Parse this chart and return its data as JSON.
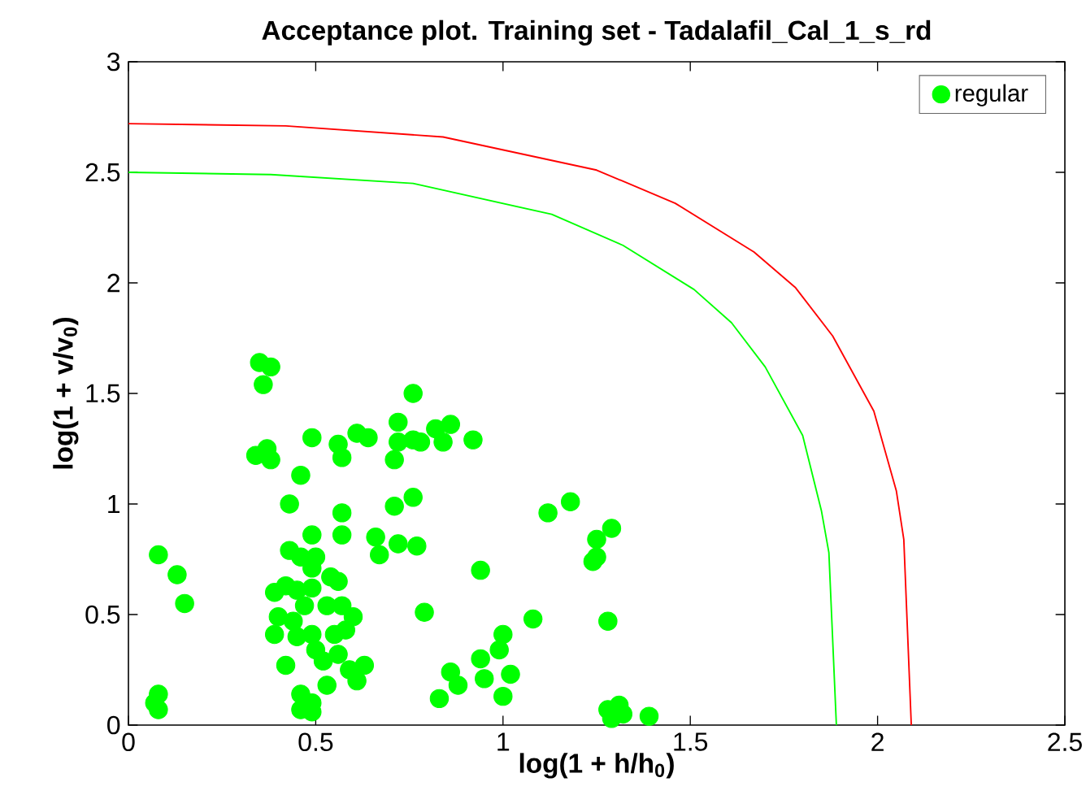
{
  "chart_data": {
    "type": "scatter",
    "title": "Acceptance plot. Training set - Tadalafil_Cal_1_s_rd",
    "xlabel": "log(1 + h/h$_{0}$)",
    "ylabel": "log(1 + v/v$_{0}$)",
    "xlim": [
      0,
      2.5
    ],
    "ylim": [
      0,
      3
    ],
    "xticks": [
      0,
      0.5,
      1,
      1.5,
      2,
      2.5
    ],
    "yticks": [
      0,
      0.5,
      1,
      1.5,
      2,
      2.5,
      3
    ],
    "grid": false,
    "legend": "top right",
    "series": [
      {
        "type": "line",
        "marker": "none",
        "color": "#ff0000",
        "x": [
          0,
          0.42,
          0.84,
          1.25,
          1.46,
          1.67,
          1.78,
          1.88,
          1.99,
          2.05,
          2.07,
          2.09
        ],
        "values": [
          2.72,
          2.71,
          2.66,
          2.51,
          2.36,
          2.14,
          1.98,
          1.76,
          1.42,
          1.06,
          0.84,
          0
        ]
      },
      {
        "type": "line",
        "marker": "none",
        "color": "#00ff00",
        "x": [
          0,
          0.38,
          0.76,
          1.13,
          1.32,
          1.51,
          1.61,
          1.7,
          1.8,
          1.85,
          1.87,
          1.89
        ],
        "values": [
          2.5,
          2.49,
          2.45,
          2.31,
          2.17,
          1.97,
          1.82,
          1.62,
          1.31,
          0.97,
          0.78,
          0
        ]
      },
      {
        "name": "regular",
        "marker": "circle",
        "color": "#00ff00",
        "x": [
          0.08,
          0.13,
          0.15,
          0.08,
          0.07,
          0.08,
          0.35,
          0.38,
          0.36,
          0.34,
          0.38,
          0.37,
          0.46,
          0.49,
          0.56,
          0.57,
          0.61,
          0.64,
          0.72,
          0.72,
          0.71,
          0.76,
          0.86,
          0.82,
          0.78,
          0.84,
          0.92,
          0.76,
          0.43,
          0.57,
          0.71,
          0.76,
          0.49,
          0.57,
          0.66,
          0.67,
          0.72,
          0.77,
          0.43,
          0.46,
          0.5,
          0.49,
          0.54,
          0.56,
          0.39,
          0.42,
          0.45,
          0.49,
          0.47,
          0.53,
          0.57,
          0.6,
          0.4,
          0.44,
          0.39,
          0.45,
          0.49,
          0.55,
          0.58,
          0.5,
          0.56,
          0.52,
          0.42,
          0.59,
          0.63,
          0.61,
          0.46,
          0.53,
          0.49,
          0.46,
          0.49,
          0.94,
          0.79,
          1.08,
          1.0,
          0.99,
          0.94,
          1.02,
          0.86,
          0.95,
          0.88,
          1.0,
          0.83,
          1.12,
          1.18,
          1.29,
          1.25,
          1.25,
          1.24,
          1.28,
          1.28,
          1.31,
          1.29,
          1.32,
          1.39
        ],
        "values": [
          0.77,
          0.68,
          0.55,
          0.14,
          0.1,
          0.07,
          1.64,
          1.62,
          1.54,
          1.22,
          1.2,
          1.25,
          1.13,
          1.3,
          1.27,
          1.21,
          1.32,
          1.3,
          1.37,
          1.28,
          1.2,
          1.5,
          1.36,
          1.34,
          1.28,
          1.28,
          1.29,
          1.29,
          1.0,
          0.96,
          0.99,
          1.03,
          0.86,
          0.86,
          0.85,
          0.77,
          0.82,
          0.81,
          0.79,
          0.76,
          0.76,
          0.71,
          0.67,
          0.65,
          0.6,
          0.63,
          0.61,
          0.62,
          0.54,
          0.54,
          0.54,
          0.49,
          0.49,
          0.47,
          0.41,
          0.4,
          0.41,
          0.41,
          0.43,
          0.34,
          0.32,
          0.29,
          0.27,
          0.25,
          0.27,
          0.2,
          0.14,
          0.18,
          0.1,
          0.07,
          0.06,
          0.7,
          0.51,
          0.48,
          0.41,
          0.34,
          0.3,
          0.23,
          0.24,
          0.21,
          0.18,
          0.13,
          0.12,
          0.96,
          1.01,
          0.89,
          0.84,
          0.76,
          0.74,
          0.47,
          0.07,
          0.09,
          0.03,
          0.05,
          0.04
        ]
      }
    ]
  }
}
